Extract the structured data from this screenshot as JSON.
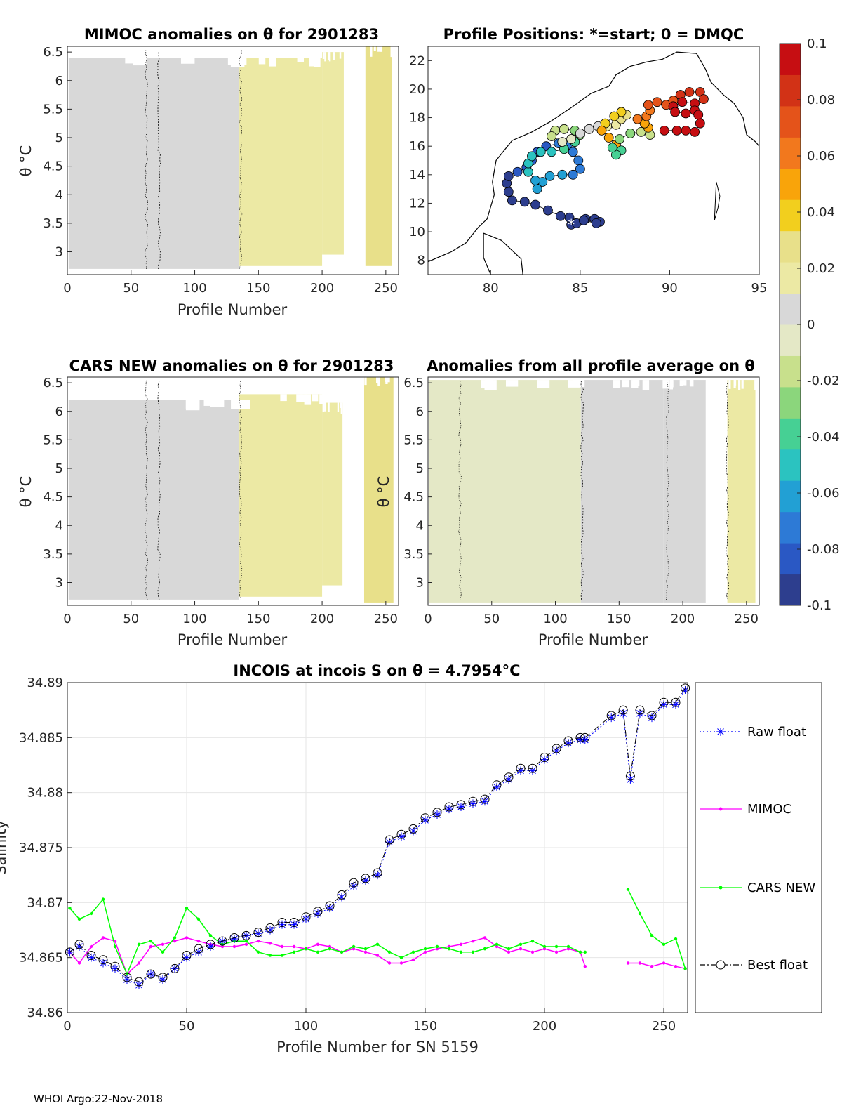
{
  "chart_data": [
    {
      "id": "mimoc",
      "type": "heatmap",
      "title": "MIMOC anomalies on θ  for 2901283",
      "xlabel": "Profile Number",
      "ylabel": "θ °C",
      "xlim": [
        0,
        260
      ],
      "ylim": [
        2.6,
        6.6
      ],
      "xticks": [
        "0",
        "50",
        "100",
        "150",
        "200",
        "250"
      ],
      "yticks": [
        "3",
        "3.5",
        "4",
        "4.5",
        "5",
        "5.5",
        "6",
        "6.5"
      ],
      "bands": [
        {
          "x0": 1,
          "x1": 135,
          "y0": 2.7,
          "y1": 6.4,
          "value": 0.0
        },
        {
          "x0": 135,
          "x1": 200,
          "y0": 2.75,
          "y1": 6.4,
          "value": 0.013
        },
        {
          "x0": 200,
          "x1": 217,
          "y0": 2.95,
          "y1": 6.5,
          "value": 0.016
        },
        {
          "x0": 234,
          "x1": 255,
          "y0": 2.75,
          "y1": 6.6,
          "value": 0.03
        }
      ]
    },
    {
      "id": "positions",
      "type": "scatter",
      "title": "Profile Positions: *=start; 0 = DMQC",
      "xlim": [
        76.5,
        95
      ],
      "ylim": [
        7,
        23
      ],
      "xticks": [
        "80",
        "85",
        "90",
        "95"
      ],
      "yticks": [
        "8",
        "10",
        "12",
        "14",
        "16",
        "18",
        "20",
        "22"
      ],
      "track": [
        [
          84.5,
          10.5,
          -0.1
        ],
        [
          84.8,
          10.6,
          -0.1
        ],
        [
          85.3,
          10.9,
          -0.1
        ],
        [
          85.8,
          10.9,
          -0.1
        ],
        [
          86.1,
          10.7,
          -0.1
        ],
        [
          85.9,
          10.6,
          -0.1
        ],
        [
          85.2,
          10.8,
          -0.1
        ],
        [
          84.4,
          11.0,
          -0.1
        ],
        [
          83.9,
          11.1,
          -0.1
        ],
        [
          83.2,
          11.5,
          -0.1
        ],
        [
          82.5,
          11.9,
          -0.1
        ],
        [
          81.9,
          12.1,
          -0.1
        ],
        [
          81.2,
          12.2,
          -0.1
        ],
        [
          81.0,
          12.8,
          -0.1
        ],
        [
          80.9,
          13.4,
          -0.095
        ],
        [
          81.0,
          13.9,
          -0.09
        ],
        [
          81.5,
          14.2,
          -0.085
        ],
        [
          82.0,
          14.5,
          -0.085
        ],
        [
          82.3,
          15.0,
          -0.08
        ],
        [
          82.6,
          15.6,
          -0.08
        ],
        [
          83.1,
          16.0,
          -0.08
        ],
        [
          83.8,
          16.2,
          -0.075
        ],
        [
          84.3,
          16.1,
          -0.075
        ],
        [
          84.6,
          15.6,
          -0.075
        ],
        [
          84.9,
          15.0,
          -0.07
        ],
        [
          85.0,
          14.4,
          -0.07
        ],
        [
          84.6,
          14.0,
          -0.07
        ],
        [
          84.0,
          14.0,
          -0.065
        ],
        [
          83.3,
          13.9,
          -0.065
        ],
        [
          82.9,
          13.5,
          -0.065
        ],
        [
          82.6,
          13.0,
          -0.06
        ],
        [
          82.5,
          13.6,
          -0.06
        ],
        [
          82.1,
          14.2,
          -0.055
        ],
        [
          82.1,
          14.8,
          -0.055
        ],
        [
          82.3,
          15.3,
          -0.05
        ],
        [
          82.8,
          15.6,
          -0.05
        ],
        [
          83.4,
          15.6,
          -0.045
        ],
        [
          84.1,
          15.8,
          -0.04
        ],
        [
          84.7,
          16.3,
          -0.035
        ],
        [
          85.0,
          16.8,
          -0.03
        ],
        [
          84.7,
          17.1,
          -0.025
        ],
        [
          84.1,
          17.2,
          -0.02
        ],
        [
          83.6,
          17.1,
          -0.02
        ],
        [
          83.4,
          16.7,
          -0.015
        ],
        [
          84.0,
          16.3,
          -0.01
        ],
        [
          84.5,
          16.5,
          -0.005
        ],
        [
          85.0,
          16.9,
          0.0
        ],
        [
          85.5,
          17.2,
          0.005
        ],
        [
          86.0,
          17.4,
          0.01
        ],
        [
          86.5,
          17.4,
          0.015
        ],
        [
          87.0,
          17.5,
          0.02
        ],
        [
          87.3,
          17.9,
          0.025
        ],
        [
          87.6,
          18.2,
          0.03
        ],
        [
          87.3,
          18.4,
          0.035
        ],
        [
          86.9,
          18.1,
          0.04
        ],
        [
          86.4,
          17.6,
          0.04
        ],
        [
          86.2,
          17.1,
          0.045
        ],
        [
          86.6,
          16.6,
          0.045
        ],
        [
          87.0,
          16.1,
          0.05
        ],
        [
          87.3,
          15.7,
          -0.035
        ],
        [
          87.0,
          15.4,
          -0.04
        ],
        [
          86.8,
          15.9,
          -0.04
        ],
        [
          87.2,
          16.5,
          -0.03
        ],
        [
          87.8,
          16.9,
          -0.025
        ],
        [
          88.4,
          17.0,
          -0.02
        ],
        [
          88.9,
          16.8,
          -0.02
        ],
        [
          88.8,
          17.3,
          0.05
        ],
        [
          88.6,
          17.6,
          0.055
        ],
        [
          88.2,
          17.9,
          0.06
        ],
        [
          88.7,
          18.1,
          0.065
        ],
        [
          88.9,
          18.5,
          0.065
        ],
        [
          88.8,
          18.9,
          0.07
        ],
        [
          89.3,
          19.1,
          0.07
        ],
        [
          89.8,
          18.9,
          0.075
        ],
        [
          90.2,
          19.2,
          0.075
        ],
        [
          90.6,
          19.6,
          0.08
        ],
        [
          91.1,
          19.8,
          0.08
        ],
        [
          91.7,
          19.8,
          0.085
        ],
        [
          91.9,
          19.3,
          0.085
        ],
        [
          91.4,
          19.0,
          0.09
        ],
        [
          90.7,
          19.1,
          0.09
        ],
        [
          90.2,
          18.8,
          0.09
        ],
        [
          90.3,
          18.4,
          0.095
        ],
        [
          90.9,
          18.3,
          0.095
        ],
        [
          91.4,
          18.5,
          0.1
        ],
        [
          91.6,
          18.2,
          0.1
        ],
        [
          91.7,
          17.6,
          0.1
        ],
        [
          91.4,
          17.0,
          0.1
        ],
        [
          90.9,
          17.1,
          0.1
        ],
        [
          90.4,
          17.1,
          0.1
        ],
        [
          89.7,
          17.1,
          0.1
        ]
      ],
      "start": [
        84.5,
        10.5
      ]
    },
    {
      "id": "cars",
      "type": "heatmap",
      "title": "CARS NEW anomalies on θ for 2901283",
      "xlabel": "Profile Number",
      "ylabel": "θ °C",
      "xlim": [
        0,
        260
      ],
      "ylim": [
        2.6,
        6.6
      ],
      "xticks": [
        "0",
        "50",
        "100",
        "150",
        "200",
        "250"
      ],
      "yticks": [
        "3",
        "3.5",
        "4",
        "4.5",
        "5",
        "5.5",
        "6",
        "6.5"
      ],
      "bands": [
        {
          "x0": 1,
          "x1": 135,
          "y0": 2.7,
          "y1": 6.2,
          "value": 0.0
        },
        {
          "x0": 135,
          "x1": 200,
          "y0": 2.75,
          "y1": 6.3,
          "value": 0.013
        },
        {
          "x0": 200,
          "x1": 216,
          "y0": 2.95,
          "y1": 6.15,
          "value": 0.016
        },
        {
          "x0": 233,
          "x1": 256,
          "y0": 2.65,
          "y1": 6.6,
          "value": 0.03
        }
      ]
    },
    {
      "id": "allprof",
      "type": "heatmap",
      "title": "Anomalies from all profile average on θ",
      "xlabel": "Profile Number",
      "ylabel": "θ °C",
      "xlim": [
        0,
        260
      ],
      "ylim": [
        2.6,
        6.6
      ],
      "xticks": [
        "0",
        "50",
        "100",
        "150",
        "200",
        "250"
      ],
      "yticks": [
        "3",
        "3.5",
        "4",
        "4.5",
        "5",
        "5.5",
        "6",
        "6.5"
      ],
      "bands": [
        {
          "x0": 1,
          "x1": 120,
          "y0": 2.65,
          "y1": 6.55,
          "value": -0.008
        },
        {
          "x0": 120,
          "x1": 185,
          "y0": 2.65,
          "y1": 6.55,
          "value": 0.0
        },
        {
          "x0": 185,
          "x1": 218,
          "y0": 2.65,
          "y1": 6.55,
          "value": 0.008
        },
        {
          "x0": 235,
          "x1": 257,
          "y0": 2.65,
          "y1": 6.55,
          "value": 0.014
        }
      ]
    },
    {
      "id": "incois",
      "type": "line",
      "title": "INCOIS at incois S on θ = 4.7954°C",
      "xlabel": "Profile Number for SN 5159",
      "ylabel": "Salinity",
      "xlim": [
        0,
        260
      ],
      "ylim": [
        34.86,
        34.89
      ],
      "xticks": [
        "0",
        "50",
        "100",
        "150",
        "200",
        "250"
      ],
      "yticks": [
        "34.86",
        "34.865",
        "34.87",
        "34.875",
        "34.88",
        "34.885",
        "34.89"
      ],
      "series": [
        {
          "name": "Raw float",
          "color": "#0000ff",
          "style": "dotted",
          "marker": "asterisk",
          "x": [
            1,
            5,
            10,
            15,
            20,
            25,
            30,
            35,
            40,
            45,
            50,
            55,
            60,
            65,
            70,
            75,
            80,
            85,
            90,
            95,
            100,
            105,
            110,
            115,
            120,
            125,
            130,
            135,
            140,
            145,
            150,
            155,
            160,
            165,
            170,
            175,
            180,
            185,
            190,
            195,
            200,
            205,
            210,
            215,
            217,
            228,
            233,
            236,
            240,
            245,
            250,
            255,
            259
          ],
          "y": [
            34.8655,
            34.866,
            34.865,
            34.8645,
            34.864,
            34.863,
            34.8625,
            34.8635,
            34.863,
            34.864,
            34.865,
            34.8655,
            34.866,
            34.8665,
            34.8667,
            34.867,
            34.8672,
            34.8675,
            34.868,
            34.868,
            34.8685,
            34.869,
            34.8695,
            34.8705,
            34.8715,
            34.872,
            34.8725,
            34.8755,
            34.876,
            34.8765,
            34.8775,
            34.878,
            34.8785,
            34.8787,
            34.879,
            34.8792,
            34.8805,
            34.8812,
            34.882,
            34.882,
            34.883,
            34.8838,
            34.8845,
            34.8848,
            34.8848,
            34.8868,
            34.8872,
            34.8812,
            34.8872,
            34.8868,
            34.888,
            34.888,
            34.8893
          ]
        },
        {
          "name": "MIMOC",
          "color": "#ff00ff",
          "style": "solid",
          "marker": "dot",
          "x": [
            1,
            5,
            10,
            15,
            20,
            25,
            30,
            35,
            40,
            45,
            50,
            55,
            60,
            65,
            70,
            75,
            80,
            85,
            90,
            95,
            100,
            105,
            110,
            115,
            120,
            125,
            130,
            135,
            140,
            145,
            150,
            155,
            160,
            165,
            170,
            175,
            180,
            185,
            190,
            195,
            200,
            205,
            210,
            215,
            217,
            235,
            240,
            245,
            250,
            255,
            259
          ],
          "y": [
            34.8655,
            34.8645,
            34.866,
            34.8668,
            34.8665,
            34.8635,
            34.8645,
            34.866,
            34.8662,
            34.8665,
            34.8668,
            34.8665,
            34.8662,
            34.866,
            34.866,
            34.8662,
            34.8665,
            34.8663,
            34.866,
            34.866,
            34.8658,
            34.8662,
            34.866,
            34.8655,
            34.8658,
            34.8655,
            34.8652,
            34.8645,
            34.8645,
            34.8648,
            34.8655,
            34.8658,
            34.866,
            34.8662,
            34.8665,
            34.8668,
            34.866,
            34.8655,
            34.8658,
            34.8655,
            34.8658,
            34.8655,
            34.8658,
            34.8655,
            34.8642,
            34.8645,
            34.8645,
            34.8642,
            34.8645,
            34.8642,
            34.864
          ]
        },
        {
          "name": "CARS NEW",
          "color": "#00ff00",
          "style": "solid",
          "marker": "dot",
          "x": [
            1,
            5,
            10,
            15,
            20,
            25,
            30,
            35,
            40,
            45,
            50,
            55,
            60,
            65,
            70,
            75,
            80,
            85,
            90,
            95,
            100,
            105,
            110,
            115,
            120,
            125,
            130,
            135,
            140,
            145,
            150,
            155,
            160,
            165,
            170,
            175,
            180,
            185,
            190,
            195,
            200,
            205,
            210,
            215,
            217,
            235,
            240,
            245,
            250,
            255,
            259
          ],
          "y": [
            34.8695,
            34.8685,
            34.869,
            34.8703,
            34.866,
            34.8635,
            34.8662,
            34.8665,
            34.8655,
            34.8668,
            34.8695,
            34.8685,
            34.867,
            34.8662,
            34.8665,
            34.8665,
            34.8655,
            34.8652,
            34.8652,
            34.8655,
            34.8658,
            34.8655,
            34.8658,
            34.8655,
            34.866,
            34.8658,
            34.8662,
            34.8655,
            34.865,
            34.8655,
            34.8658,
            34.866,
            34.8658,
            34.8655,
            34.8655,
            34.8658,
            34.8662,
            34.8658,
            34.8662,
            34.8665,
            34.866,
            34.866,
            34.866,
            34.8655,
            34.8655,
            34.8712,
            34.869,
            34.867,
            34.8662,
            34.8667,
            34.864
          ]
        },
        {
          "name": "Best float",
          "color": "#000000",
          "style": "dashdot",
          "marker": "circle",
          "x": [
            1,
            5,
            10,
            15,
            20,
            25,
            30,
            35,
            40,
            45,
            50,
            55,
            60,
            65,
            70,
            75,
            80,
            85,
            90,
            95,
            100,
            105,
            110,
            115,
            120,
            125,
            130,
            135,
            140,
            145,
            150,
            155,
            160,
            165,
            170,
            175,
            180,
            185,
            190,
            195,
            200,
            205,
            210,
            215,
            217,
            228,
            233,
            236,
            240,
            245,
            250,
            255,
            259
          ],
          "y": [
            34.8655,
            34.8662,
            34.8652,
            34.8648,
            34.8642,
            34.8632,
            34.8628,
            34.8635,
            34.8632,
            34.864,
            34.8652,
            34.8658,
            34.8662,
            34.8665,
            34.8668,
            34.867,
            34.8673,
            34.8677,
            34.8682,
            34.8682,
            34.8687,
            34.8692,
            34.8697,
            34.8707,
            34.8718,
            34.8722,
            34.8727,
            34.8757,
            34.8762,
            34.8767,
            34.8777,
            34.8782,
            34.8787,
            34.8789,
            34.8792,
            34.8794,
            34.8807,
            34.8814,
            34.8822,
            34.8822,
            34.8832,
            34.884,
            34.8847,
            34.885,
            34.885,
            34.887,
            34.8875,
            34.8815,
            34.8875,
            34.887,
            34.8882,
            34.8882,
            34.8895
          ]
        }
      ]
    }
  ],
  "colorbar": {
    "min": -0.1,
    "max": 0.1,
    "ticks": [
      "0.1",
      "0.08",
      "0.06",
      "0.04",
      "0.02",
      "0",
      "-0.02",
      "-0.04",
      "-0.06",
      "-0.08",
      "-0.1"
    ],
    "colors": [
      "#2d3e8e",
      "#2a58c4",
      "#2d7ad6",
      "#22a0d4",
      "#2bc3c0",
      "#46d094",
      "#8bd67c",
      "#c8e08c",
      "#e4e8c6",
      "#d8d8d8",
      "#ece9a4",
      "#e8e08a",
      "#f2cf1e",
      "#f9a40a",
      "#f2781d",
      "#e4531a",
      "#d23216",
      "#c60e12"
    ]
  },
  "legend": {
    "items": [
      "Raw float",
      "MIMOC",
      "CARS NEW",
      "Best float"
    ]
  },
  "footer": "WHOI Argo:22-Nov-2018"
}
